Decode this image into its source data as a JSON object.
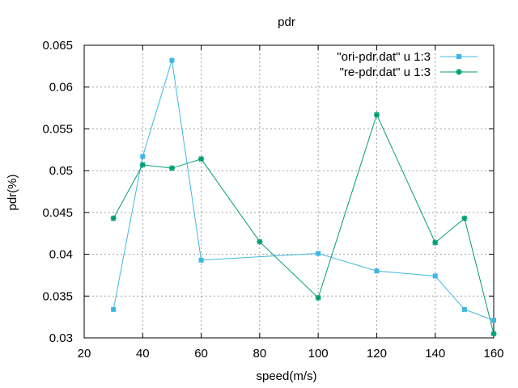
{
  "chart_data": {
    "type": "line",
    "title": "pdr",
    "xlabel": "speed(m/s)",
    "ylabel": "pdr(%)",
    "xlim": [
      20,
      160
    ],
    "ylim": [
      0.03,
      0.065
    ],
    "xticks": [
      20,
      40,
      60,
      80,
      100,
      120,
      140,
      160
    ],
    "xtick_labels": [
      "20",
      "40",
      "60",
      "80",
      "100",
      "120",
      "140",
      "160"
    ],
    "yticks": [
      0.03,
      0.035,
      0.04,
      0.045,
      0.05,
      0.055,
      0.06,
      0.065
    ],
    "ytick_labels": [
      "0.03",
      "0.035",
      "0.04",
      "0.045",
      "0.05",
      "0.055",
      "0.06",
      "0.065"
    ],
    "grid": true,
    "legend_position": "top-right",
    "series": [
      {
        "name": "\"ori-pdr.dat\" u 1:3",
        "color": "#3fb7e0",
        "marker": "square",
        "x": [
          30,
          40,
          50,
          60,
          100,
          120,
          140,
          150,
          160
        ],
        "y": [
          0.0334,
          0.0517,
          0.0632,
          0.0393,
          0.0401,
          0.038,
          0.0374,
          0.0334,
          0.0321
        ]
      },
      {
        "name": "\"re-pdr.dat\" u 1:3",
        "color": "#009e73",
        "marker": "star",
        "x": [
          30,
          40,
          50,
          60,
          80,
          100,
          120,
          140,
          150,
          160
        ],
        "y": [
          0.0443,
          0.0507,
          0.0503,
          0.0514,
          0.0415,
          0.0348,
          0.0567,
          0.0414,
          0.0443,
          0.0305
        ]
      }
    ]
  }
}
